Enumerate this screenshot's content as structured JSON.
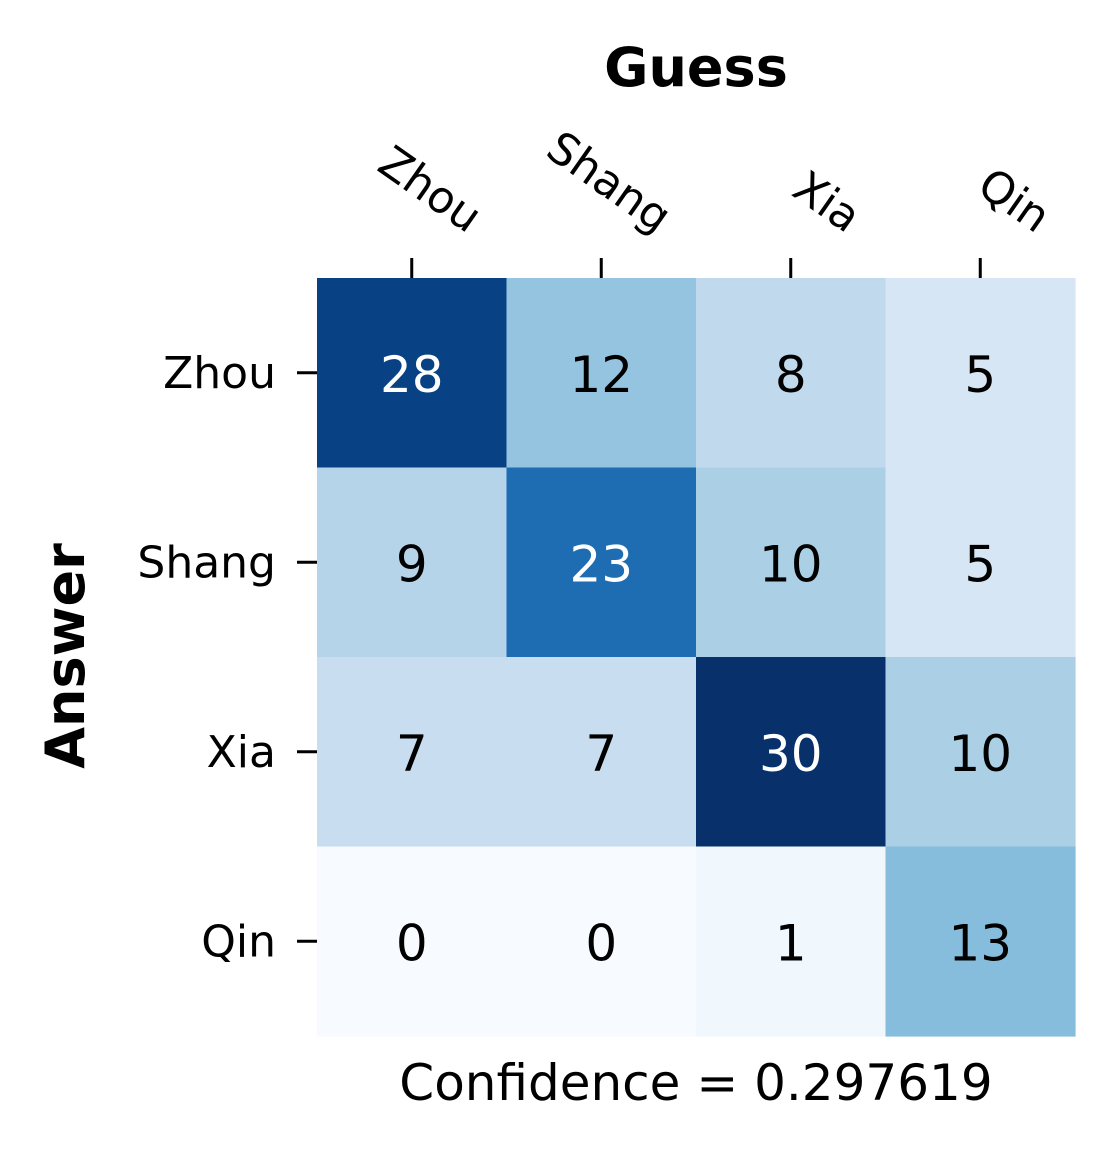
{
  "chart_data": {
    "type": "heatmap",
    "title": "Guess",
    "xlabel": "Guess",
    "ylabel": "Answer",
    "x_categories": [
      "Zhou",
      "Shang",
      "Xia",
      "Qin"
    ],
    "y_categories": [
      "Zhou",
      "Shang",
      "Xia",
      "Qin"
    ],
    "values": [
      [
        28,
        12,
        8,
        5
      ],
      [
        9,
        23,
        10,
        5
      ],
      [
        7,
        7,
        30,
        10
      ],
      [
        0,
        0,
        1,
        13
      ]
    ],
    "colormap": "Blues",
    "value_range": [
      0,
      30
    ],
    "x_axis_position": "top",
    "colorbar": false,
    "grid": false,
    "annotation": "Confidence = 0.297619"
  }
}
